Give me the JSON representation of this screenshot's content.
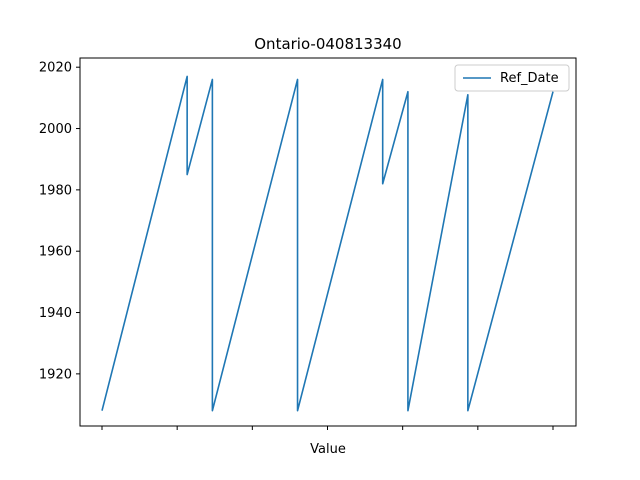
{
  "chart_data": {
    "type": "line",
    "title": "Ontario-040813340",
    "xlabel": "Value",
    "ylabel": "",
    "ylim": [
      1903,
      2023
    ],
    "y_ticks": [
      1920,
      1940,
      1960,
      1980,
      2000,
      2020
    ],
    "x_tick_count": 7,
    "x_tick_labels": [
      "",
      "",
      "",
      "",
      "",
      "",
      ""
    ],
    "grid": false,
    "legend_position": "top-right",
    "series": [
      {
        "name": "Ref_Date",
        "color": "#1f77b4",
        "x": [
          0,
          27,
          27,
          35,
          35,
          62,
          62,
          89,
          89,
          97,
          97,
          116,
          116,
          143
        ],
        "values": [
          1908,
          2017,
          1985,
          2016,
          1908,
          2016,
          1908,
          2016,
          1982,
          2012,
          1908,
          2011,
          1908,
          2012
        ]
      }
    ]
  }
}
